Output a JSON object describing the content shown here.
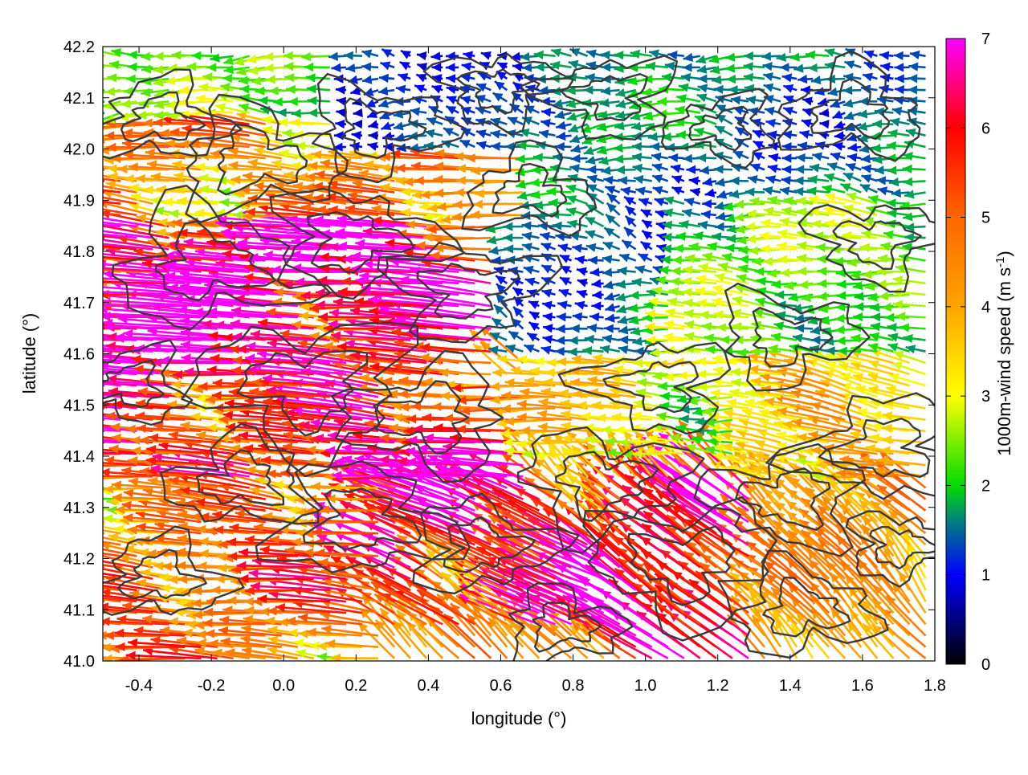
{
  "chart_data": {
    "type": "vector_field",
    "title": "",
    "xlabel": "longitude (°)",
    "ylabel": "latitude (°)",
    "xlim": [
      -0.5,
      1.8
    ],
    "ylim": [
      41.0,
      42.2
    ],
    "x_ticks": [
      -0.4,
      -0.2,
      0.0,
      0.2,
      0.4,
      0.6,
      0.8,
      1.0,
      1.2,
      1.4,
      1.6,
      1.8
    ],
    "x_tick_labels": [
      "-0.4",
      "-0.2",
      "0.0",
      "0.2",
      "0.4",
      "0.6",
      "0.8",
      "1.0",
      "1.2",
      "1.4",
      "1.6",
      "1.8"
    ],
    "y_ticks": [
      41.0,
      41.1,
      41.2,
      41.3,
      41.4,
      41.5,
      41.6,
      41.7,
      41.8,
      41.9,
      42.0,
      42.1,
      42.2
    ],
    "y_tick_labels": [
      "41.0",
      "41.1",
      "41.2",
      "41.3",
      "41.4",
      "41.5",
      "41.6",
      "41.7",
      "41.8",
      "41.9",
      "42.0",
      "42.1",
      "42.2"
    ],
    "grid": true,
    "colorbar": {
      "label": "1000m-wind speed (m s",
      "label_superscript": "-1",
      "label_close": ")",
      "range": [
        0,
        7
      ],
      "ticks": [
        0,
        1,
        2,
        3,
        4,
        5,
        6,
        7
      ],
      "tick_labels": [
        "0",
        "1",
        "2",
        "3",
        "4",
        "5",
        "6",
        "7"
      ],
      "color_stops": [
        {
          "value": 0,
          "color": "#000000"
        },
        {
          "value": 1,
          "color": "#0000ff"
        },
        {
          "value": 1.6,
          "color": "#008080"
        },
        {
          "value": 2,
          "color": "#00dd00"
        },
        {
          "value": 3,
          "color": "#ffff00"
        },
        {
          "value": 4,
          "color": "#ffa500"
        },
        {
          "value": 5,
          "color": "#ff6600"
        },
        {
          "value": 6,
          "color": "#ff0000"
        },
        {
          "value": 7,
          "color": "#ff00ff"
        }
      ]
    },
    "wind_regions": [
      {
        "lon": [
          -0.5,
          0.15
        ],
        "lat": [
          42.05,
          42.2
        ],
        "u": -2.2,
        "v": 0.0
      },
      {
        "lon": [
          0.15,
          0.7
        ],
        "lat": [
          42.0,
          42.2
        ],
        "u": -1.2,
        "v": 0.1
      },
      {
        "lon": [
          0.7,
          1.8
        ],
        "lat": [
          41.9,
          42.2
        ],
        "u": -1.5,
        "v": 0.1
      },
      {
        "lon": [
          -0.5,
          0.7
        ],
        "lat": [
          41.85,
          42.05
        ],
        "u": -4.2,
        "v": 0.3
      },
      {
        "lon": [
          -0.5,
          0.6
        ],
        "lat": [
          41.55,
          41.85
        ],
        "u": -6.3,
        "v": 0.5
      },
      {
        "lon": [
          0.6,
          1.1
        ],
        "lat": [
          41.6,
          41.9
        ],
        "u": -1.4,
        "v": 0.2
      },
      {
        "lon": [
          1.1,
          1.8
        ],
        "lat": [
          41.6,
          41.9
        ],
        "u": -2.2,
        "v": 0.2
      },
      {
        "lon": [
          -0.5,
          0.7
        ],
        "lat": [
          41.35,
          41.55
        ],
        "u": -5.6,
        "v": 0.4
      },
      {
        "lon": [
          0.7,
          1.25
        ],
        "lat": [
          41.4,
          41.6
        ],
        "u": -3.0,
        "v": 0.2
      },
      {
        "lon": [
          1.25,
          1.8
        ],
        "lat": [
          41.35,
          41.6
        ],
        "u": -3.5,
        "v": 0.6
      },
      {
        "lon": [
          -0.5,
          0.3
        ],
        "lat": [
          41.0,
          41.35
        ],
        "u": -4.5,
        "v": 0.4
      },
      {
        "lon": [
          0.3,
          0.9
        ],
        "lat": [
          41.05,
          41.35
        ],
        "u": -5.5,
        "v": 2.5
      },
      {
        "lon": [
          0.9,
          1.3
        ],
        "lat": [
          41.0,
          41.35
        ],
        "u": -4.8,
        "v": 3.6
      },
      {
        "lon": [
          1.3,
          1.8
        ],
        "lat": [
          41.0,
          41.35
        ],
        "u": -3.0,
        "v": 3.0
      }
    ]
  }
}
